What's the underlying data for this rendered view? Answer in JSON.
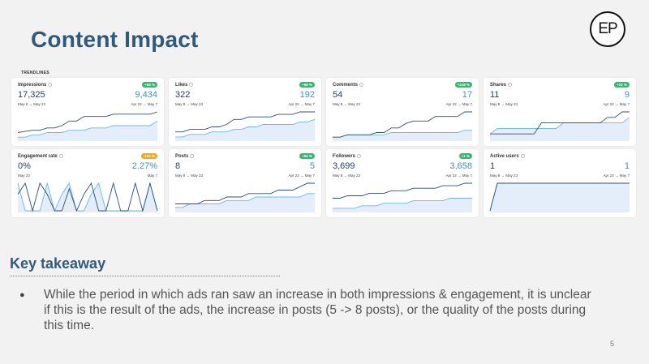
{
  "slide": {
    "title": "Content Impact",
    "logo_text": "EP",
    "trendlines_label": "TRENDLINES",
    "page_number": "5"
  },
  "key_takeaway": {
    "title": "Key takeaway",
    "bullet": "●",
    "text": "While the period in which ads ran saw an increase in both impressions & engagement, it is unclear if this is the result of the ads, the increase in posts (5 -> 8 posts), or the quality of the posts during this time."
  },
  "colors": {
    "current": "#2b4d7e",
    "previous": "#6cb4ec",
    "fill": "#e3eefa",
    "green_badge": "#2eb872",
    "orange_badge": "#f5a623"
  },
  "cards": [
    {
      "name": "Impressions",
      "badge": "+84 %",
      "badge_color": "green",
      "value": "17,325",
      "prev_value": "9,434",
      "date_left": "May 8 → May 23",
      "date_right": "Apr 22 → May 7",
      "current": [
        3,
        3.5,
        4,
        4,
        5,
        5,
        6,
        8,
        8,
        10,
        10,
        10,
        10,
        11,
        11,
        11,
        11,
        11,
        11,
        12
      ],
      "previous": [
        1,
        1,
        2,
        2,
        3,
        3,
        3,
        4,
        4,
        4,
        5,
        5,
        5,
        6,
        6,
        6,
        6,
        6,
        6,
        8
      ]
    },
    {
      "name": "Likes",
      "badge": "+68 %",
      "badge_color": "green",
      "value": "322",
      "prev_value": "192",
      "date_left": "May 8 → May 23",
      "date_right": "Apr 22 → May 7",
      "current": [
        3,
        3,
        4,
        4,
        4,
        5,
        5,
        6,
        8,
        8,
        9,
        9,
        9,
        9,
        10,
        10,
        10,
        11,
        11,
        11
      ],
      "previous": [
        1,
        1,
        2,
        2,
        2,
        3,
        3,
        3,
        4,
        4,
        5,
        5,
        6,
        6,
        6,
        6,
        6,
        7,
        7,
        8
      ]
    },
    {
      "name": "Comments",
      "badge": "+218 %",
      "badge_color": "green",
      "value": "54",
      "prev_value": "17",
      "date_left": "May 8 → May 23",
      "date_right": "Apr 22 → May 7",
      "current": [
        1,
        1,
        2,
        2,
        2,
        2,
        3,
        3,
        5,
        5,
        7,
        8,
        8,
        8,
        10,
        10,
        10,
        10,
        12,
        12
      ],
      "previous": [
        1,
        1,
        2,
        2,
        2,
        2,
        2,
        2,
        3,
        3,
        3,
        3,
        3,
        3,
        3,
        3,
        3,
        3,
        4,
        4
      ]
    },
    {
      "name": "Shares",
      "badge": "+22 %",
      "badge_color": "green",
      "value": "11",
      "prev_value": "9",
      "date_left": "May 8 → May 23",
      "date_right": "Apr 22 → May 7",
      "current": [
        1,
        1,
        1,
        1,
        1,
        1,
        1,
        3,
        3,
        3,
        3,
        3,
        3,
        3,
        3,
        3,
        4,
        4,
        5,
        5
      ],
      "previous": [
        1,
        2,
        2,
        2,
        2,
        2,
        2,
        2,
        2,
        2,
        3,
        3,
        3,
        3,
        3,
        3,
        3,
        3,
        3,
        4
      ]
    },
    {
      "name": "Engagement rate",
      "badge": "-100 %",
      "badge_color": "orange",
      "value": "0%",
      "prev_value": "2.27%",
      "date_left": "May 23",
      "date_right": "May 7",
      "current": [
        3,
        5,
        0,
        5,
        3,
        0,
        0,
        4,
        0,
        3,
        5,
        0,
        0,
        5,
        0,
        0,
        5,
        0,
        5,
        0
      ],
      "previous": [
        5,
        0,
        0,
        0,
        5,
        0,
        3,
        5,
        0,
        0,
        3,
        5,
        0,
        0,
        0,
        0,
        0,
        0,
        5,
        0
      ]
    },
    {
      "name": "Posts",
      "badge": "+60 %",
      "badge_color": "green",
      "value": "8",
      "prev_value": "5",
      "date_left": "May 8 → May 23",
      "date_right": "Apr 22 → May 7",
      "current": [
        2,
        2,
        2,
        2,
        3,
        3,
        3,
        4,
        4,
        4,
        5,
        5,
        5,
        5,
        6,
        6,
        6,
        7,
        8,
        8
      ],
      "previous": [
        1,
        1,
        2,
        2,
        2,
        2,
        2,
        3,
        3,
        3,
        3,
        4,
        4,
        4,
        4,
        4,
        4,
        4,
        5,
        5
      ]
    },
    {
      "name": "Followers",
      "badge": "+1 %",
      "badge_color": "green",
      "value": "3,699",
      "prev_value": "3,658",
      "date_left": "May 8 → May 23",
      "date_right": "Apr 22 → May 7",
      "current": [
        5,
        5,
        6,
        6,
        6,
        7,
        7,
        7,
        8,
        8,
        8,
        9,
        9,
        9,
        9,
        10,
        10,
        10,
        11,
        11
      ],
      "previous": [
        1,
        1,
        1,
        1,
        2,
        2,
        2,
        3,
        3,
        3,
        3,
        4,
        4,
        4,
        4,
        4,
        5,
        5,
        5,
        5
      ]
    },
    {
      "name": "Active users",
      "badge": "",
      "badge_color": "green",
      "value": "1",
      "prev_value": "1",
      "date_left": "May 8 → May 23",
      "date_right": "Apr 22 → May 7",
      "current": [
        0,
        1,
        1,
        1,
        1,
        1,
        1,
        1,
        1,
        1,
        1,
        1,
        1,
        1,
        1,
        1,
        1,
        1,
        1,
        1
      ],
      "previous": [
        0,
        1,
        1,
        1,
        1,
        1,
        1,
        1,
        1,
        1,
        1,
        1,
        1,
        1,
        1,
        1,
        1,
        1,
        1,
        1
      ]
    }
  ]
}
